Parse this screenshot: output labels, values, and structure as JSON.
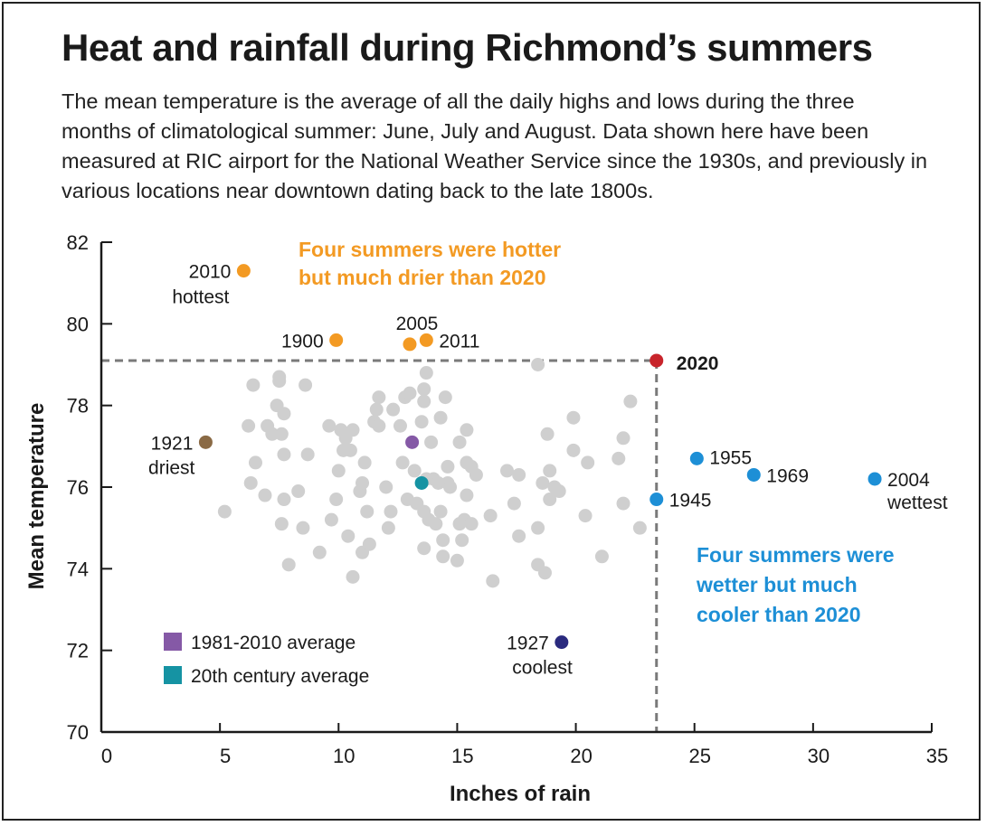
{
  "header": {
    "title": "Heat and rainfall during Richmond’s summers",
    "subtitle": "The mean temperature is the average of all the daily highs and lows during the three months of climatological summer: June, July and August. Data shown here have been measured at RIC airport for the National Weather Service since the 1930s, and previously in various locations near downtown dating back to the late 1800s."
  },
  "chart_data": {
    "type": "scatter",
    "xlabel": "Inches of rain",
    "ylabel": "Mean temperature",
    "xlim": [
      0,
      35
    ],
    "ylim": [
      70,
      82
    ],
    "xticks": [
      0,
      5,
      10,
      15,
      20,
      25,
      30,
      35
    ],
    "yticks": [
      70,
      72,
      74,
      76,
      78,
      80,
      82
    ],
    "colors": {
      "gray": "#cfcfcf",
      "orange": "#f39a23",
      "blue": "#1d8fd6",
      "red": "#c8242b",
      "brown": "#8a6a45",
      "navy": "#2a2a7e",
      "purple": "#8559a6",
      "teal": "#1593a3",
      "dashed": "#7a7a7a"
    },
    "reference_2020": {
      "x": 23.4,
      "y": 79.1
    },
    "highlighted": [
      {
        "year": "2010",
        "note": "hottest",
        "x": 6.0,
        "y": 81.3,
        "color": "orange"
      },
      {
        "year": "1900",
        "note": "",
        "x": 9.9,
        "y": 79.6,
        "color": "orange"
      },
      {
        "year": "2005",
        "note": "",
        "x": 13.0,
        "y": 79.5,
        "color": "orange"
      },
      {
        "year": "2011",
        "note": "",
        "x": 13.7,
        "y": 79.6,
        "color": "orange"
      },
      {
        "year": "2020",
        "note": "",
        "x": 23.4,
        "y": 79.1,
        "color": "red"
      },
      {
        "year": "1921",
        "note": "driest",
        "x": 4.4,
        "y": 77.1,
        "color": "brown"
      },
      {
        "year": "1955",
        "note": "",
        "x": 25.1,
        "y": 76.7,
        "color": "blue"
      },
      {
        "year": "1969",
        "note": "",
        "x": 27.5,
        "y": 76.3,
        "color": "blue"
      },
      {
        "year": "2004",
        "note": "wettest",
        "x": 32.6,
        "y": 76.2,
        "color": "blue"
      },
      {
        "year": "1945",
        "note": "",
        "x": 23.4,
        "y": 75.7,
        "color": "blue"
      },
      {
        "year": "1927",
        "note": "coolest",
        "x": 19.4,
        "y": 72.2,
        "color": "navy"
      }
    ],
    "averages": [
      {
        "label": "1981-2010 average",
        "x": 13.1,
        "y": 77.1,
        "color": "purple"
      },
      {
        "label": "20th century average",
        "x": 13.5,
        "y": 76.1,
        "color": "teal"
      }
    ],
    "annotations": [
      {
        "text_lines": [
          "Four summers were hotter",
          "but much drier than 2020"
        ],
        "color": "orange"
      },
      {
        "text_lines": [
          "Four summers were",
          "wetter but much",
          "cooler than 2020"
        ],
        "color": "blue"
      }
    ],
    "other_summers": [
      [
        5.2,
        75.4
      ],
      [
        6.2,
        77.5
      ],
      [
        6.4,
        78.5
      ],
      [
        6.5,
        76.6
      ],
      [
        6.3,
        76.1
      ],
      [
        6.9,
        75.8
      ],
      [
        7.0,
        77.5
      ],
      [
        7.2,
        77.3
      ],
      [
        7.4,
        78.0
      ],
      [
        7.5,
        78.7
      ],
      [
        7.5,
        78.6
      ],
      [
        7.7,
        77.8
      ],
      [
        7.6,
        77.3
      ],
      [
        7.7,
        76.8
      ],
      [
        7.6,
        75.1
      ],
      [
        7.7,
        75.7
      ],
      [
        7.9,
        74.1
      ],
      [
        8.3,
        75.9
      ],
      [
        8.5,
        75.0
      ],
      [
        8.6,
        78.5
      ],
      [
        8.7,
        76.8
      ],
      [
        9.2,
        74.4
      ],
      [
        9.6,
        77.5
      ],
      [
        9.7,
        75.2
      ],
      [
        9.9,
        75.7
      ],
      [
        10.0,
        76.4
      ],
      [
        10.1,
        77.4
      ],
      [
        10.2,
        76.9
      ],
      [
        10.3,
        77.2
      ],
      [
        10.4,
        74.8
      ],
      [
        10.5,
        76.9
      ],
      [
        10.6,
        77.4
      ],
      [
        10.6,
        73.8
      ],
      [
        10.9,
        75.9
      ],
      [
        11.0,
        74.4
      ],
      [
        11.0,
        76.1
      ],
      [
        11.1,
        76.6
      ],
      [
        11.2,
        75.4
      ],
      [
        11.3,
        74.6
      ],
      [
        11.5,
        77.6
      ],
      [
        11.6,
        77.9
      ],
      [
        11.7,
        77.5
      ],
      [
        11.7,
        78.2
      ],
      [
        12.0,
        76.0
      ],
      [
        12.1,
        75.0
      ],
      [
        12.2,
        75.4
      ],
      [
        12.3,
        77.9
      ],
      [
        12.6,
        77.5
      ],
      [
        12.7,
        76.6
      ],
      [
        12.8,
        78.2
      ],
      [
        12.9,
        75.7
      ],
      [
        13.0,
        78.3
      ],
      [
        13.2,
        76.4
      ],
      [
        13.3,
        75.6
      ],
      [
        13.5,
        77.6
      ],
      [
        13.6,
        78.4
      ],
      [
        13.6,
        78.1
      ],
      [
        13.6,
        75.4
      ],
      [
        13.6,
        74.5
      ],
      [
        13.7,
        76.2
      ],
      [
        13.7,
        78.8
      ],
      [
        13.8,
        75.2
      ],
      [
        13.9,
        77.1
      ],
      [
        14.0,
        76.2
      ],
      [
        14.1,
        75.1
      ],
      [
        14.2,
        76.1
      ],
      [
        14.3,
        77.7
      ],
      [
        14.3,
        75.4
      ],
      [
        14.4,
        74.7
      ],
      [
        14.4,
        74.3
      ],
      [
        14.5,
        78.2
      ],
      [
        14.6,
        76.1
      ],
      [
        14.6,
        76.5
      ],
      [
        14.7,
        76.0
      ],
      [
        15.0,
        74.2
      ],
      [
        15.1,
        77.1
      ],
      [
        15.1,
        75.1
      ],
      [
        15.2,
        74.7
      ],
      [
        15.3,
        75.2
      ],
      [
        15.4,
        77.4
      ],
      [
        15.4,
        76.6
      ],
      [
        15.4,
        75.8
      ],
      [
        15.6,
        76.5
      ],
      [
        15.6,
        75.1
      ],
      [
        15.8,
        76.3
      ],
      [
        16.4,
        75.3
      ],
      [
        16.5,
        73.7
      ],
      [
        17.1,
        76.4
      ],
      [
        17.4,
        75.6
      ],
      [
        17.6,
        76.3
      ],
      [
        17.6,
        74.8
      ],
      [
        18.4,
        79.0
      ],
      [
        18.4,
        75.0
      ],
      [
        18.4,
        74.1
      ],
      [
        18.6,
        76.1
      ],
      [
        18.7,
        73.9
      ],
      [
        18.8,
        77.3
      ],
      [
        18.9,
        76.4
      ],
      [
        18.9,
        75.7
      ],
      [
        19.1,
        76.0
      ],
      [
        19.3,
        75.9
      ],
      [
        19.9,
        77.7
      ],
      [
        19.9,
        76.9
      ],
      [
        20.4,
        75.3
      ],
      [
        20.5,
        76.6
      ],
      [
        21.1,
        74.3
      ],
      [
        21.8,
        76.7
      ],
      [
        22.0,
        77.2
      ],
      [
        22.0,
        75.6
      ],
      [
        22.3,
        78.1
      ],
      [
        22.7,
        75.0
      ]
    ]
  }
}
